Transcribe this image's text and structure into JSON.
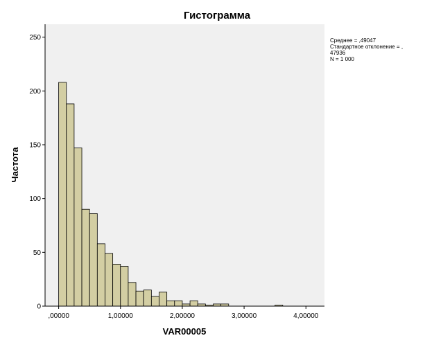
{
  "colors": {
    "plot_background": "#f0f0f0",
    "bar_fill": "#d3cea3",
    "bar_stroke": "#000000",
    "axis": "#000000"
  },
  "chart_data": {
    "type": "bar",
    "title": "Гистограмма",
    "xlabel": "VAR00005",
    "ylabel": "Частота",
    "xlim": [
      -0.22,
      4.3
    ],
    "ylim": [
      0,
      262
    ],
    "grid": false,
    "bin_width": 0.125,
    "bins_start": 0,
    "values": [
      208,
      188,
      147,
      90,
      86,
      58,
      49,
      39,
      37,
      22,
      14,
      15,
      9,
      13,
      5,
      5,
      2,
      5,
      2,
      1,
      2,
      2,
      0,
      0,
      0,
      0,
      0,
      0,
      1
    ],
    "x_ticks": [
      {
        "value": 0,
        "label": ",00000"
      },
      {
        "value": 1,
        "label": "1,00000"
      },
      {
        "value": 2,
        "label": "2,00000"
      },
      {
        "value": 3,
        "label": "3,00000"
      },
      {
        "value": 4,
        "label": "4,00000"
      }
    ],
    "y_ticks": [
      {
        "value": 0,
        "label": "0"
      },
      {
        "value": 50,
        "label": "50"
      },
      {
        "value": 100,
        "label": "100"
      },
      {
        "value": 150,
        "label": "150"
      },
      {
        "value": 200,
        "label": "200"
      },
      {
        "value": 250,
        "label": "250"
      }
    ],
    "stats": {
      "line1": "Среднее = ,49047",
      "line2": "Стандартное отклонение = ,",
      "line3": "47936",
      "line4": "N = 1 000"
    }
  }
}
